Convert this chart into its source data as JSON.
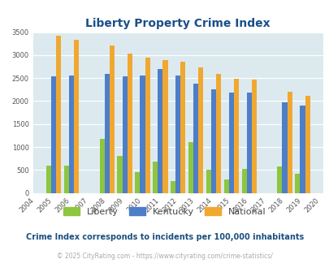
{
  "title": "Liberty Property Crime Index",
  "title_color": "#1a4f8a",
  "years": [
    2004,
    2005,
    2006,
    2007,
    2008,
    2009,
    2010,
    2011,
    2012,
    2013,
    2014,
    2015,
    2016,
    2017,
    2018,
    2019,
    2020
  ],
  "liberty": [
    0,
    600,
    600,
    0,
    1180,
    800,
    450,
    680,
    250,
    1100,
    510,
    290,
    530,
    0,
    570,
    410,
    0
  ],
  "kentucky": [
    0,
    2530,
    2550,
    0,
    2590,
    2530,
    2550,
    2700,
    2550,
    2380,
    2260,
    2180,
    2190,
    0,
    1970,
    1900,
    0
  ],
  "national": [
    0,
    3420,
    3330,
    0,
    3210,
    3040,
    2950,
    2900,
    2860,
    2730,
    2590,
    2490,
    2470,
    0,
    2200,
    2110,
    0
  ],
  "liberty_color": "#8dc63f",
  "kentucky_color": "#4d7ec9",
  "national_color": "#f0a830",
  "ylim": [
    0,
    3500
  ],
  "yticks": [
    0,
    500,
    1000,
    1500,
    2000,
    2500,
    3000,
    3500
  ],
  "background_color": "#dceaf0",
  "grid_color": "#ffffff",
  "subtitle": "Crime Index corresponds to incidents per 100,000 inhabitants",
  "subtitle_color": "#1a5080",
  "footer": "© 2025 CityRating.com - https://www.cityrating.com/crime-statistics/",
  "footer_color": "#aaaaaa"
}
